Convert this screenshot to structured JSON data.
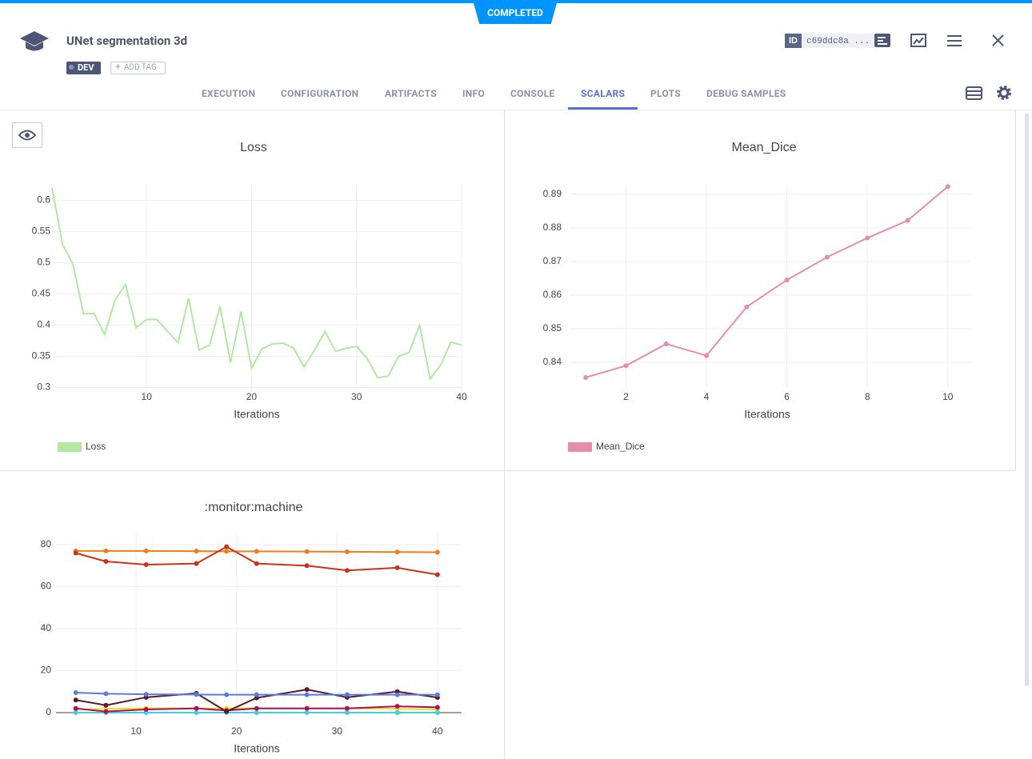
{
  "header": {
    "status": "COMPLETED",
    "title": "UNet segmentation 3d",
    "tags": [
      "DEV"
    ],
    "add_tag": "ADD TAG",
    "id_label": "ID",
    "id": "c69ddc8a ..."
  },
  "tabs": [
    "EXECUTION",
    "CONFIGURATION",
    "ARTIFACTS",
    "INFO",
    "CONSOLE",
    "SCALARS",
    "PLOTS",
    "DEBUG SAMPLES"
  ],
  "active_tab": 5,
  "chart_data": [
    {
      "type": "line",
      "title": "Loss",
      "x_label": "Iterations",
      "x": [
        1,
        2,
        3,
        4,
        5,
        6,
        7,
        8,
        9,
        10,
        11,
        12,
        13,
        14,
        15,
        16,
        17,
        18,
        19,
        20,
        21,
        22,
        23,
        24,
        25,
        26,
        27,
        28,
        29,
        30,
        31,
        32,
        33,
        34,
        35,
        36,
        37,
        38,
        39,
        40
      ],
      "series": [
        {
          "name": "Loss",
          "color": "#b1e8a2",
          "values": [
            0.62,
            0.53,
            0.497,
            0.418,
            0.419,
            0.385,
            0.44,
            0.465,
            0.396,
            0.409,
            0.409,
            0.39,
            0.372,
            0.443,
            0.36,
            0.368,
            0.43,
            0.34,
            0.422,
            0.331,
            0.362,
            0.37,
            0.371,
            0.363,
            0.333,
            0.36,
            0.39,
            0.358,
            0.363,
            0.366,
            0.347,
            0.316,
            0.318,
            0.35,
            0.356,
            0.4,
            0.314,
            0.336,
            0.373,
            0.368
          ]
        }
      ],
      "xlim": [
        1,
        40
      ],
      "ylim": [
        0.293,
        0.625
      ],
      "xticks": [
        10,
        20,
        30,
        40
      ],
      "yticks": [
        0.3,
        0.35,
        0.4,
        0.45,
        0.5,
        0.55,
        0.6
      ],
      "grid": true,
      "markers": false,
      "legend": "bottom-left"
    },
    {
      "type": "line",
      "title": "Mean_Dice",
      "x_label": "Iterations",
      "x": [
        1,
        2,
        3,
        4,
        5,
        6,
        7,
        8,
        9,
        10
      ],
      "series": [
        {
          "name": "Mean_Dice",
          "color": "#e88cab",
          "values": [
            0.8355,
            0.839,
            0.8455,
            0.842,
            0.8565,
            0.8645,
            0.8713,
            0.877,
            0.8822,
            0.8923
          ]
        }
      ],
      "xlim": [
        0.6,
        10.6
      ],
      "ylim": [
        0.8324,
        0.8926
      ],
      "xticks": [
        2,
        4,
        6,
        8,
        10
      ],
      "yticks": [
        0.84,
        0.85,
        0.86,
        0.87,
        0.88,
        0.89
      ],
      "grid": true,
      "markers": true,
      "legend": "bottom-left"
    },
    {
      "type": "line",
      "title": ":monitor:machine",
      "x_label": "Iterations",
      "x": [
        4,
        7,
        11,
        16,
        19,
        22,
        27,
        31,
        36,
        40
      ],
      "series": [
        {
          "color": "#f07c1c",
          "values": [
            77,
            77,
            77,
            76.9,
            76.8,
            76.8,
            76.7,
            76.6,
            76.5,
            76.4
          ]
        },
        {
          "color": "#c8321e",
          "values": [
            76,
            72,
            70.5,
            71,
            79,
            71,
            70,
            67.7,
            69,
            65.7
          ]
        },
        {
          "color": "#e8e020",
          "values": [
            1.5,
            1.8,
            2,
            2,
            2,
            2,
            2,
            2,
            1.8,
            1.5
          ]
        },
        {
          "color": "#40d0e0",
          "values": [
            0,
            0,
            0,
            0,
            0,
            0,
            0,
            0,
            0,
            0
          ]
        },
        {
          "color": "#b0105a",
          "values": [
            2,
            0.5,
            1.5,
            2,
            1,
            2,
            2,
            2,
            3,
            2.5
          ]
        },
        {
          "color": "#5a1a2a",
          "values": [
            6,
            3.5,
            7.3,
            9.2,
            0.5,
            7,
            11,
            7.3,
            10,
            7.2
          ]
        },
        {
          "color": "#5b7bdb",
          "values": [
            9.5,
            9,
            8.7,
            8.6,
            8.5,
            8.5,
            8.5,
            8.5,
            8.5,
            8.5
          ]
        }
      ],
      "xlim": [
        2.03,
        42.4
      ],
      "ylim": [
        -2.67,
        86.1
      ],
      "xticks": [
        10,
        20,
        30,
        40
      ],
      "yticks": [
        0,
        20,
        40,
        60,
        80
      ],
      "grid": true,
      "markers": true,
      "zero_line": true
    }
  ]
}
